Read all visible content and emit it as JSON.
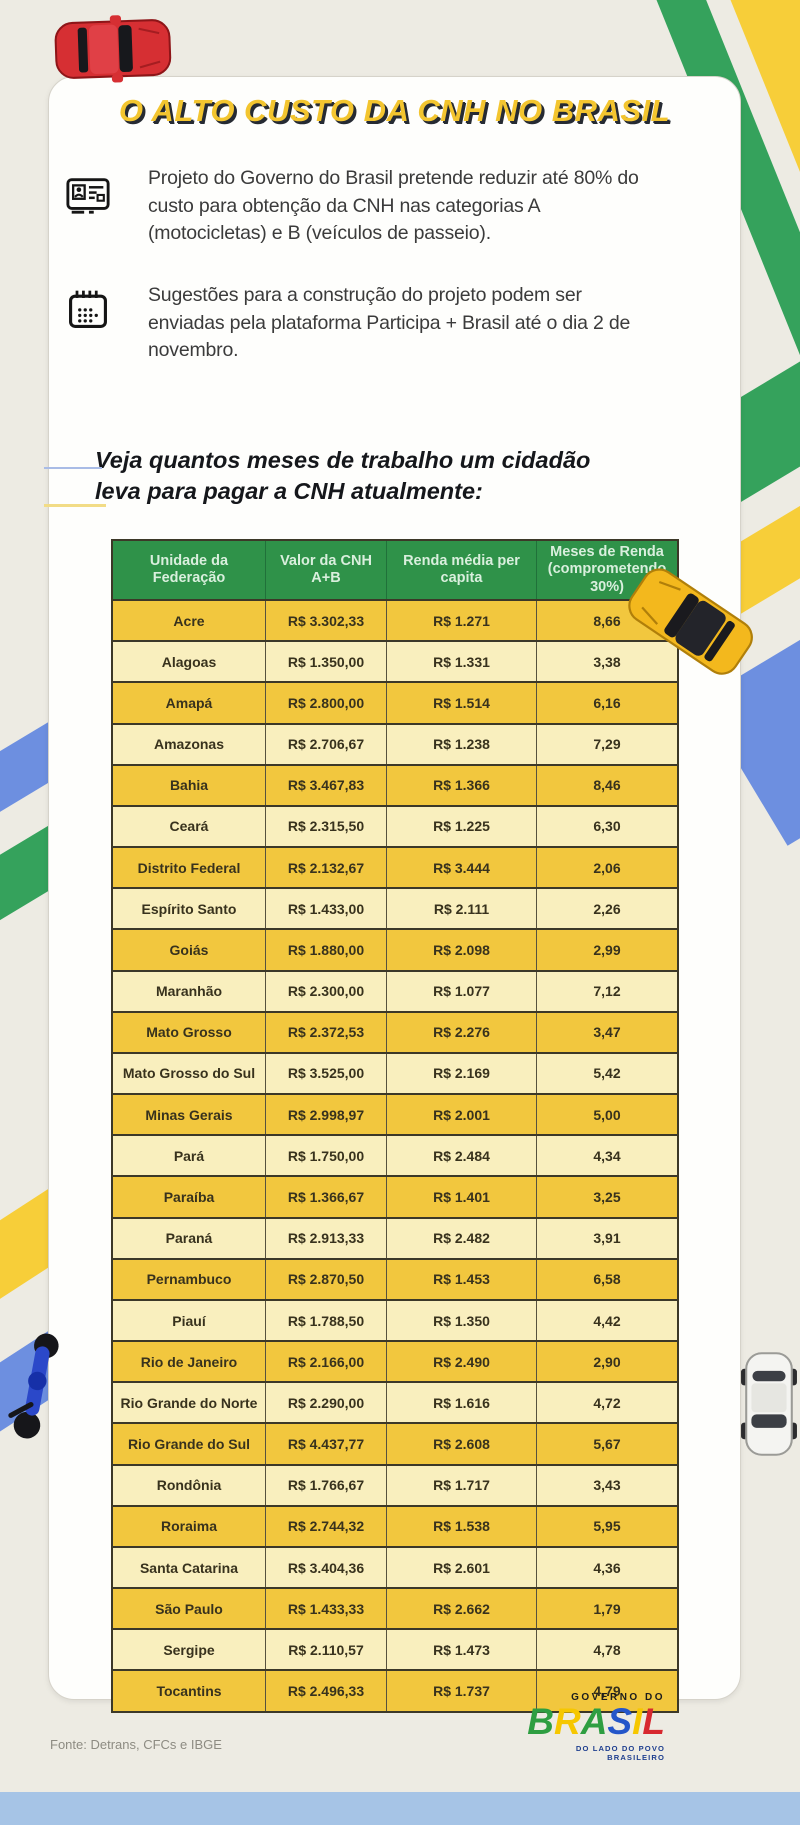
{
  "page": {
    "title": "O ALTO CUSTO DA CNH NO BRASIL",
    "intro_items": [
      {
        "icon": "license-card-icon",
        "text": "Projeto do Governo do Brasil pretende reduzir até 80% do custo para obtenção da CNH nas categorias A (motocicletas) e B (veículos de passeio)."
      },
      {
        "icon": "calendar-icon",
        "text": "Sugestões para a construção do projeto podem ser enviadas pela plataforma Participa + Brasil até o dia 2 de novembro."
      }
    ],
    "subheading": "Veja quantos meses de trabalho um cidadão leva para pagar a CNH atualmente:",
    "source": "Fonte: Detrans, CFCs e IBGE"
  },
  "logo": {
    "top": "GOVERNO DO",
    "tagline": "DO LADO DO POVO BRASILEIRO",
    "letters": [
      {
        "char": "B",
        "color": "#2e9e41"
      },
      {
        "char": "R",
        "color": "#f6c700"
      },
      {
        "char": "A",
        "color": "#2e9e41"
      },
      {
        "char": "S",
        "color": "#2456c9"
      },
      {
        "char": "I",
        "color": "#f6c700"
      },
      {
        "char": "L",
        "color": "#d7282f"
      }
    ]
  },
  "table": {
    "headers": [
      "Unidade da Federação",
      "Valor da CNH A+B",
      "Renda média per capita",
      "Meses de Renda (comprometendo 30%)"
    ],
    "rows": [
      [
        "Acre",
        "R$ 3.302,33",
        "R$ 1.271",
        "8,66"
      ],
      [
        "Alagoas",
        "R$ 1.350,00",
        "R$ 1.331",
        "3,38"
      ],
      [
        "Amapá",
        "R$ 2.800,00",
        "R$ 1.514",
        "6,16"
      ],
      [
        "Amazonas",
        "R$ 2.706,67",
        "R$ 1.238",
        "7,29"
      ],
      [
        "Bahia",
        "R$ 3.467,83",
        "R$ 1.366",
        "8,46"
      ],
      [
        "Ceará",
        "R$ 2.315,50",
        "R$ 1.225",
        "6,30"
      ],
      [
        "Distrito Federal",
        "R$ 2.132,67",
        "R$ 3.444",
        "2,06"
      ],
      [
        "Espírito Santo",
        "R$ 1.433,00",
        "R$ 2.111",
        "2,26"
      ],
      [
        "Goiás",
        "R$ 1.880,00",
        "R$ 2.098",
        "2,99"
      ],
      [
        "Maranhão",
        "R$ 2.300,00",
        "R$ 1.077",
        "7,12"
      ],
      [
        "Mato Grosso",
        "R$ 2.372,53",
        "R$ 2.276",
        "3,47"
      ],
      [
        "Mato Grosso do Sul",
        "R$ 3.525,00",
        "R$ 2.169",
        "5,42"
      ],
      [
        "Minas Gerais",
        "R$ 2.998,97",
        "R$ 2.001",
        "5,00"
      ],
      [
        "Pará",
        "R$ 1.750,00",
        "R$ 2.484",
        "4,34"
      ],
      [
        "Paraíba",
        "R$ 1.366,67",
        "R$ 1.401",
        "3,25"
      ],
      [
        "Paraná",
        "R$ 2.913,33",
        "R$ 2.482",
        "3,91"
      ],
      [
        "Pernambuco",
        "R$ 2.870,50",
        "R$ 1.453",
        "6,58"
      ],
      [
        "Piauí",
        "R$ 1.788,50",
        "R$ 1.350",
        "4,42"
      ],
      [
        "Rio de Janeiro",
        "R$ 2.166,00",
        "R$ 2.490",
        "2,90"
      ],
      [
        "Rio Grande do Norte",
        "R$ 2.290,00",
        "R$ 1.616",
        "4,72"
      ],
      [
        "Rio Grande do Sul",
        "R$ 4.437,77",
        "R$ 2.608",
        "5,67"
      ],
      [
        "Rondônia",
        "R$ 1.766,67",
        "R$ 1.717",
        "3,43"
      ],
      [
        "Roraima",
        "R$ 2.744,32",
        "R$ 1.538",
        "5,95"
      ],
      [
        "Santa Catarina",
        "R$ 3.404,36",
        "R$ 2.601",
        "4,36"
      ],
      [
        "São Paulo",
        "R$ 1.433,33",
        "R$ 2.662",
        "1,79"
      ],
      [
        "Sergipe",
        "R$ 2.110,57",
        "R$ 1.473",
        "4,78"
      ],
      [
        "Tocantins",
        "R$ 2.496,33",
        "R$ 1.737",
        "4,79"
      ]
    ]
  },
  "chart_data": {
    "type": "table",
    "title": "O ALTO CUSTO DA CNH NO BRASIL",
    "columns": [
      "Unidade da Federação",
      "Valor da CNH A+B",
      "Renda média per capita",
      "Meses de Renda (comprometendo 30%)"
    ],
    "rows": [
      [
        "Acre",
        3302.33,
        1271,
        8.66
      ],
      [
        "Alagoas",
        1350.0,
        1331,
        3.38
      ],
      [
        "Amapá",
        2800.0,
        1514,
        6.16
      ],
      [
        "Amazonas",
        2706.67,
        1238,
        7.29
      ],
      [
        "Bahia",
        3467.83,
        1366,
        8.46
      ],
      [
        "Ceará",
        2315.5,
        1225,
        6.3
      ],
      [
        "Distrito Federal",
        2132.67,
        3444,
        2.06
      ],
      [
        "Espírito Santo",
        1433.0,
        2111,
        2.26
      ],
      [
        "Goiás",
        1880.0,
        2098,
        2.99
      ],
      [
        "Maranhão",
        2300.0,
        1077,
        7.12
      ],
      [
        "Mato Grosso",
        2372.53,
        2276,
        3.47
      ],
      [
        "Mato Grosso do Sul",
        3525.0,
        2169,
        5.42
      ],
      [
        "Minas Gerais",
        2998.97,
        2001,
        5.0
      ],
      [
        "Pará",
        1750.0,
        2484,
        4.34
      ],
      [
        "Paraíba",
        1366.67,
        1401,
        3.25
      ],
      [
        "Paraná",
        2913.33,
        2482,
        3.91
      ],
      [
        "Pernambuco",
        2870.5,
        1453,
        6.58
      ],
      [
        "Piauí",
        1788.5,
        1350,
        4.42
      ],
      [
        "Rio de Janeiro",
        2166.0,
        2490,
        2.9
      ],
      [
        "Rio Grande do Norte",
        2290.0,
        1616,
        4.72
      ],
      [
        "Rio Grande do Sul",
        4437.77,
        2608,
        5.67
      ],
      [
        "Rondônia",
        1766.67,
        1717,
        3.43
      ],
      [
        "Roraima",
        2744.32,
        1538,
        5.95
      ],
      [
        "Santa Catarina",
        3404.36,
        2601,
        4.36
      ],
      [
        "São Paulo",
        1433.33,
        2662,
        1.79
      ],
      [
        "Sergipe",
        2110.57,
        1473,
        4.78
      ],
      [
        "Tocantins",
        2496.33,
        1737,
        4.79
      ]
    ],
    "units": {
      "Valor da CNH A+B": "BRL",
      "Renda média per capita": "BRL",
      "Meses de Renda": "months"
    }
  },
  "colors": {
    "header_green": "#2f9249",
    "row_gold": "#f2c73e",
    "row_pale": "#f9efbe",
    "title_yellow": "#f3c52f",
    "bottom_bar_blue": "#a6c4e6",
    "stripe_green": "#35a25c",
    "stripe_yellow": "#f7ce39",
    "stripe_blue": "#6d8fe0"
  }
}
